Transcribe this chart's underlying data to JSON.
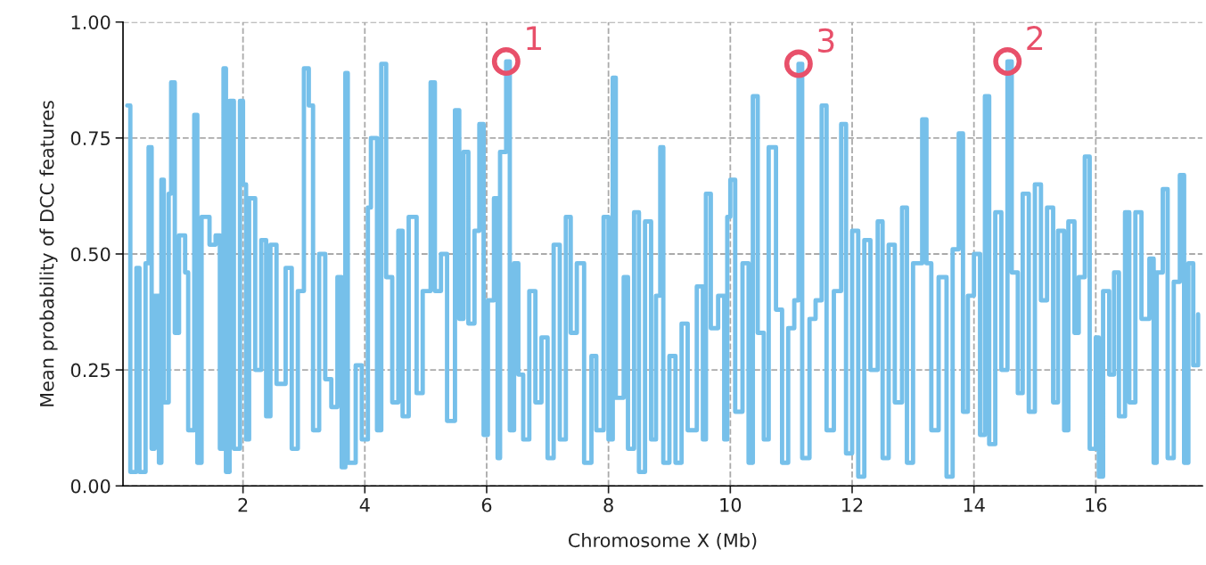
{
  "chart_data": {
    "type": "step",
    "xlabel": "Chromosome X (Mb)",
    "ylabel": "Mean probability of DCC features",
    "xlim": [
      0.03,
      17.75
    ],
    "xticks": [
      2,
      4,
      6,
      8,
      10,
      12,
      14,
      16
    ],
    "ylim": [
      0,
      1
    ],
    "yticks": [
      {
        "value": 0,
        "label": "0.00"
      },
      {
        "value": 0.25,
        "label": "0.25"
      },
      {
        "value": 0.5,
        "label": "0.50"
      },
      {
        "value": 0.75,
        "label": "0.75"
      },
      {
        "value": 1,
        "label": "1.00"
      }
    ],
    "grid": true,
    "line_style": "solid",
    "marker": "none",
    "annotations": [
      {
        "text": "1",
        "x": 6.32,
        "y": 0.915
      },
      {
        "text": "3",
        "x": 11.12,
        "y": 0.91
      },
      {
        "text": "2",
        "x": 14.55,
        "y": 0.915
      }
    ],
    "series": [
      {
        "color": "#76c0ea",
        "x": [
          0.1,
          0.15,
          0.25,
          0.3,
          0.4,
          0.45,
          0.5,
          0.55,
          0.62,
          0.66,
          0.7,
          0.78,
          0.82,
          0.88,
          0.95,
          1.05,
          1.1,
          1.2,
          1.25,
          1.32,
          1.45,
          1.55,
          1.62,
          1.68,
          1.72,
          1.78,
          1.85,
          1.95,
          2.0,
          2.05,
          2.1,
          2.2,
          2.3,
          2.38,
          2.45,
          2.55,
          2.7,
          2.8,
          2.9,
          3.0,
          3.08,
          3.15,
          3.25,
          3.35,
          3.45,
          3.55,
          3.62,
          3.68,
          3.72,
          3.85,
          3.95,
          4.05,
          4.1,
          4.2,
          4.27,
          4.35,
          4.45,
          4.55,
          4.62,
          4.72,
          4.85,
          4.95,
          5.08,
          5.15,
          5.25,
          5.35,
          5.48,
          5.55,
          5.62,
          5.7,
          5.8,
          5.88,
          5.95,
          6.02,
          6.12,
          6.18,
          6.22,
          6.32,
          6.38,
          6.45,
          6.52,
          6.6,
          6.7,
          6.8,
          6.9,
          7.0,
          7.1,
          7.2,
          7.3,
          7.38,
          7.48,
          7.6,
          7.72,
          7.8,
          7.92,
          8.0,
          8.07,
          8.12,
          8.25,
          8.32,
          8.42,
          8.5,
          8.6,
          8.7,
          8.78,
          8.85,
          8.9,
          9.0,
          9.1,
          9.2,
          9.3,
          9.45,
          9.55,
          9.6,
          9.68,
          9.8,
          9.9,
          9.95,
          10.0,
          10.08,
          10.2,
          10.3,
          10.37,
          10.45,
          10.55,
          10.63,
          10.75,
          10.85,
          10.95,
          11.05,
          11.12,
          11.18,
          11.3,
          11.4,
          11.5,
          11.58,
          11.7,
          11.82,
          11.9,
          12.0,
          12.1,
          12.2,
          12.3,
          12.42,
          12.5,
          12.6,
          12.7,
          12.82,
          12.9,
          13.0,
          13.15,
          13.22,
          13.3,
          13.42,
          13.55,
          13.65,
          13.75,
          13.82,
          13.9,
          14.0,
          14.1,
          14.18,
          14.25,
          14.35,
          14.45,
          14.55,
          14.62,
          14.72,
          14.8,
          14.9,
          15.0,
          15.1,
          15.2,
          15.3,
          15.38,
          15.48,
          15.55,
          15.65,
          15.72,
          15.82,
          15.9,
          16.0,
          16.05,
          16.12,
          16.22,
          16.3,
          16.38,
          16.48,
          16.55,
          16.65,
          16.75,
          16.88,
          16.95,
          17.0,
          17.1,
          17.18,
          17.28,
          17.38,
          17.45,
          17.52,
          17.6,
          17.68
        ],
        "values": [
          0.82,
          0.03,
          0.47,
          0.03,
          0.48,
          0.73,
          0.08,
          0.41,
          0.05,
          0.66,
          0.18,
          0.63,
          0.87,
          0.33,
          0.54,
          0.46,
          0.12,
          0.8,
          0.05,
          0.58,
          0.52,
          0.54,
          0.08,
          0.9,
          0.03,
          0.83,
          0.08,
          0.83,
          0.65,
          0.1,
          0.62,
          0.25,
          0.53,
          0.15,
          0.52,
          0.22,
          0.47,
          0.08,
          0.42,
          0.9,
          0.82,
          0.12,
          0.5,
          0.23,
          0.17,
          0.45,
          0.04,
          0.89,
          0.05,
          0.26,
          0.1,
          0.6,
          0.75,
          0.12,
          0.91,
          0.45,
          0.18,
          0.55,
          0.15,
          0.58,
          0.2,
          0.42,
          0.87,
          0.42,
          0.5,
          0.14,
          0.81,
          0.36,
          0.72,
          0.35,
          0.55,
          0.78,
          0.11,
          0.4,
          0.62,
          0.06,
          0.72,
          0.915,
          0.12,
          0.48,
          0.24,
          0.1,
          0.42,
          0.18,
          0.32,
          0.06,
          0.52,
          0.1,
          0.58,
          0.33,
          0.48,
          0.05,
          0.28,
          0.12,
          0.58,
          0.1,
          0.88,
          0.19,
          0.45,
          0.08,
          0.59,
          0.03,
          0.57,
          0.1,
          0.41,
          0.73,
          0.05,
          0.28,
          0.05,
          0.35,
          0.12,
          0.43,
          0.1,
          0.63,
          0.34,
          0.41,
          0.1,
          0.58,
          0.66,
          0.16,
          0.48,
          0.05,
          0.84,
          0.33,
          0.1,
          0.73,
          0.38,
          0.05,
          0.34,
          0.4,
          0.91,
          0.06,
          0.36,
          0.4,
          0.82,
          0.12,
          0.42,
          0.78,
          0.07,
          0.55,
          0.02,
          0.53,
          0.25,
          0.57,
          0.06,
          0.52,
          0.18,
          0.6,
          0.05,
          0.48,
          0.79,
          0.48,
          0.12,
          0.45,
          0.02,
          0.51,
          0.76,
          0.16,
          0.41,
          0.5,
          0.11,
          0.84,
          0.09,
          0.59,
          0.25,
          0.915,
          0.46,
          0.2,
          0.63,
          0.16,
          0.65,
          0.4,
          0.6,
          0.18,
          0.55,
          0.12,
          0.57,
          0.33,
          0.45,
          0.71,
          0.08,
          0.32,
          0.02,
          0.42,
          0.24,
          0.46,
          0.15,
          0.59,
          0.18,
          0.59,
          0.36,
          0.49,
          0.05,
          0.46,
          0.64,
          0.06,
          0.44,
          0.67,
          0.05,
          0.48,
          0.26,
          0.37
        ]
      }
    ]
  }
}
